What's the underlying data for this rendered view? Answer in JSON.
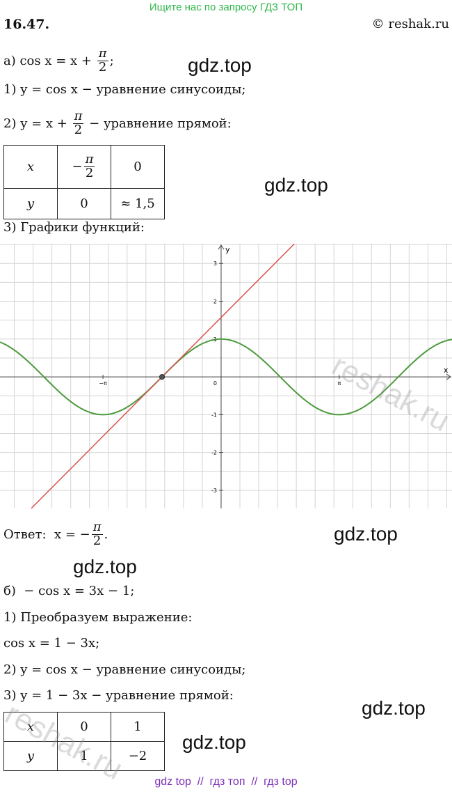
{
  "header": {
    "notice": "Ищите нас по запросу ГДЗ ТОП",
    "problem": "16.47.",
    "copyright": "© reshak.ru"
  },
  "part_a": {
    "equation": [
      "а) cos x = x + ",
      {
        "num": "π",
        "den": "2"
      },
      ";"
    ],
    "step1": [
      "1) y = cos x − уравнение синусоиды;"
    ],
    "step2": [
      "2) y = x + ",
      {
        "num": "π",
        "den": "2"
      },
      " − уравнение прямой:"
    ],
    "table": {
      "rows": [
        [
          "x",
          {
            "sign": "−",
            "num": "π",
            "den": "2"
          },
          "0"
        ],
        [
          "y",
          "0",
          "≈ 1,5"
        ]
      ]
    },
    "step3": [
      "3) Графики функций:"
    ],
    "graph": {
      "x_label": "x",
      "y_label": "y",
      "xlim": [
        -5.88,
        6.14
      ],
      "ylim": [
        -3.48,
        3.52
      ],
      "xticks": [
        {
          "value": -3.1416,
          "label": "−π"
        },
        {
          "value": 3.1416,
          "label": "π"
        }
      ],
      "yticks": [
        -3,
        -2,
        -1,
        1,
        2,
        3
      ],
      "origin_label": "0",
      "point": [
        -1.5708,
        0
      ],
      "cos_color": "#4c9a3c",
      "line_color": "#d9534f"
    },
    "answer": [
      "Ответ:  x = −",
      {
        "num": "π",
        "den": "2"
      },
      "."
    ]
  },
  "part_b": {
    "equation": [
      "б)  − cos x = 3x − 1;"
    ],
    "step1": [
      "1) Преобразуем выражение:"
    ],
    "transformed": [
      "cos x = 1 − 3x;"
    ],
    "step2": [
      "2) y = cos x − уравнение синусоиды;"
    ],
    "step3": [
      "3) y = 1 − 3x − уравнение прямой:"
    ],
    "table": {
      "rows": [
        [
          "x",
          "0",
          "1"
        ],
        [
          "y",
          "1",
          "−2"
        ]
      ]
    }
  },
  "watermarks": [
    "gdz.top",
    "gdz.top",
    "gdz.top",
    "gdz.top",
    "gdz.top",
    "gdz.top"
  ],
  "stamp": "reshak.ru",
  "footer": "gdz top  //  гдз топ  //  гдз top"
}
